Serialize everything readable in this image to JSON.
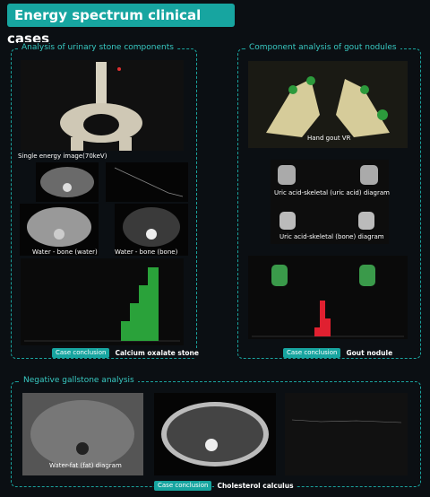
{
  "header": {
    "title": "Energy spectrum clinical cases"
  },
  "sections": [
    {
      "title": "Analysis of urinary stone components",
      "labels": [
        "Single energy image(70keV)",
        "Water - bone (water)",
        "Water - bone (bone)"
      ],
      "conclusion_tag": "Case conclusion",
      "conclusion": "Calcium oxalate stone"
    },
    {
      "title": "Component analysis of gout nodules",
      "labels": [
        "Hand gout VR",
        "Uric acid-skeletal (uric acid) diagram",
        "Uric acid-skeletal (bone) diagram"
      ],
      "conclusion_tag": "Case conclusion",
      "conclusion": "Gout nodule"
    },
    {
      "title": "Negative gallstone analysis",
      "labels": [
        "Water-fat (fat) diagram"
      ],
      "conclusion_tag": "Case conclusion",
      "conclusion": "Cholesterol calculus"
    }
  ]
}
